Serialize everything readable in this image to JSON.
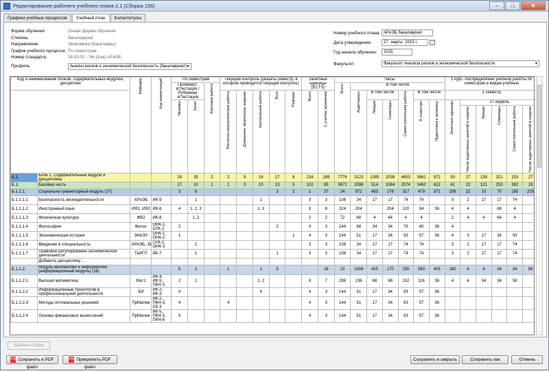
{
  "window": {
    "title": "Редактирование рабочего учебного плана 2.1 (Сборка 156)",
    "minimize": "–",
    "maximize": "□",
    "close": "✕"
  },
  "tabs": [
    {
      "label": "Графики учебных процессов"
    },
    {
      "label": "Учебный план"
    },
    {
      "label": "Колонтитулы"
    }
  ],
  "form": {
    "rows": [
      {
        "label": "Форма обучения:",
        "value": "Очная форма обучения"
      },
      {
        "label": "Степень:",
        "value": "бакалавриат"
      },
      {
        "label": "Направление:",
        "value": "Экономика (бакалавры)"
      },
      {
        "label": "График учебного процесса:",
        "value": "По семестрам"
      },
      {
        "label": "Номер стандарта:",
        "value": "38.03.01 - ЭН (Бак) АРиЭБ"
      }
    ],
    "profile_label": "Профиль:",
    "profile_value": "Анализ рисков и экономической безопасность (бакалавриат)"
  },
  "right_form": {
    "plan_number_label": "Номер учебного плана:",
    "plan_number_value": "АРиЭБ бакалавриат",
    "approval_date_label": "Дата утверждения:",
    "approval_day": "27",
    "approval_month": "марта",
    "approval_year": "2015 г.",
    "start_year_label": "Год начала обучения:",
    "start_year_value": "2015",
    "faculty_label": "Факультет:",
    "faculty_value": "Факультет Анализа рисков и экономической безопасности"
  },
  "grid_headers": {
    "code_name": "Код и наименование блоков, содержательных модулей, дисциплин",
    "department": "Кафедра",
    "competence_code": "Код компетенций",
    "by_semester": "По семестрам",
    "intermediate": "Промежут. аттестация / Рубежная аттестация",
    "exams": "Экзамен",
    "credits": "Зачет",
    "coursework": "Курсовая работа",
    "current_control": "Текущий контроль (указать семестр, в котором проводится текущий контроль)",
    "cc_cols": [
      "Расчетно-аналитическая работа",
      "Домашнее творческое задание",
      "Контрольная работа",
      "Эссе",
      "Реферат"
    ],
    "ects": "Зачетные единицы (ECTS)",
    "ects_cols": [
      "Всего",
      "С учетом экзаменов"
    ],
    "hours": "Часы",
    "hours_total": "Всего",
    "incl": "В том числе",
    "aud": "Аудиторных",
    "incl2": "В том числе",
    "lect": "Лекции",
    "sem": "Семинары",
    "selfwork": "Самостоятельная работа",
    "incl3": "В том числе",
    "in_sem": "В семестре",
    "prep_exam": "Подготовка к экзамену",
    "course1": "1 курс. Распределение учебной работы по семестрам и видам учебных",
    "sem1": "1 семестр",
    "weeks17": "17 недель",
    "c1_cols": [
      "Зачетные единицы",
      "Часов аудиторных занятий в неделю",
      "Лекции",
      "Семинары",
      "Самостоятельная работа",
      "Часов аудиторных занятий в неделю"
    ]
  },
  "rows": [
    {
      "type": "bl",
      "code": "Б.1.",
      "name": "Блок 1. Содержательные модули и дисциплины",
      "dep": "",
      "comp": "",
      "c": [
        "28",
        "35",
        "2",
        "2",
        "9",
        "16",
        "17",
        "8",
        "216",
        "189",
        "7776",
        "3123",
        "1085",
        "2038",
        "4653",
        "3681",
        "972",
        "59",
        "27",
        "138",
        "321",
        "153",
        "27"
      ]
    },
    {
      "type": "bp",
      "code": "Б.1.",
      "name": "Базовая часть",
      "dep": "",
      "comp": "",
      "c": [
        "17",
        "10",
        "1",
        "1",
        "3",
        "10",
        "13",
        "5",
        "102",
        "85",
        "3672",
        "1598",
        "514",
        "1084",
        "2074",
        "1462",
        "612",
        "41",
        "22",
        "121",
        "253",
        "382",
        "19"
      ]
    },
    {
      "type": "mod",
      "code": "Б.1.1.1.",
      "name": "Социально-гуманитарный модуль (27)",
      "dep": "",
      "comp": "",
      "c": [
        "3",
        "8",
        "",
        "",
        "",
        "",
        "3",
        "2",
        "1",
        "27",
        "24",
        "972",
        "493",
        "176",
        "317",
        "479",
        "371",
        "108",
        "22",
        "10",
        "70",
        "185",
        "205",
        "10"
      ]
    },
    {
      "type": "d",
      "code": "Б.1.1.1.1",
      "name": "Безопасность жизнедеятельности",
      "dep": "АРиЭБ",
      "comp": "ИК-9",
      "c": [
        "",
        "1",
        "",
        "",
        "",
        "1",
        "",
        "",
        "3",
        "3",
        "108",
        "34",
        "17",
        "17",
        "74",
        "74",
        "",
        "3",
        "2",
        "17",
        "17",
        "74",
        ""
      ]
    },
    {
      "type": "d",
      "code": "Б.1.1.1.2",
      "name": "Иностранный язык",
      "dep": "ИЯ1, ИЯ2",
      "comp": "ИК-6",
      "c": [
        "4",
        "1, 2, 3",
        "",
        "",
        "",
        "1, 3",
        "",
        "",
        "9",
        "8",
        "324",
        "204",
        "",
        "204",
        "120",
        "84",
        "36",
        "4",
        "4",
        "",
        "68",
        "4",
        ""
      ]
    },
    {
      "type": "d",
      "code": "Б.1.1.1.3",
      "name": "Физическая культура",
      "dep": "ФВ2",
      "comp": "ИК-8",
      "c": [
        "",
        "1, 2",
        "",
        "",
        "",
        "",
        "",
        "",
        "2",
        "2",
        "72",
        "68",
        "4",
        "64",
        "4",
        "4",
        "",
        "2",
        "4",
        "4",
        "64",
        "4",
        ""
      ]
    },
    {
      "type": "d",
      "code": "Б.1.1.1.4",
      "name": "Философия",
      "dep": "Филос",
      "comp": "ОНК-1, СЛК-2",
      "c": [
        "2",
        "",
        "",
        "",
        "",
        "",
        "2",
        "",
        "4",
        "3",
        "144",
        "68",
        "34",
        "34",
        "76",
        "40",
        "36",
        "4",
        "",
        "",
        "",
        "",
        ""
      ]
    },
    {
      "type": "d",
      "code": "Б.1.1.1.5",
      "name": "Экономическая история",
      "dep": "ЭИиЭУ",
      "comp": "ОНК-1, ОНК-2",
      "c": [
        "1",
        "",
        "",
        "",
        "",
        "",
        "",
        "1",
        "4",
        "3",
        "144",
        "51",
        "17",
        "34",
        "93",
        "57",
        "36",
        "4",
        "3",
        "17",
        "34",
        "93",
        ""
      ]
    },
    {
      "type": "d",
      "code": "Б.1.1.1.6",
      "name": "Введение в специальность",
      "dep": "АРиЭБ, ЭИиЭУ",
      "comp": "СЛК-1, ОНК-3",
      "c": [
        "",
        "1",
        "",
        "",
        "",
        "",
        "",
        "",
        "3",
        "3",
        "108",
        "34",
        "17",
        "17",
        "74",
        "74",
        "",
        "3",
        "2",
        "17",
        "17",
        "74",
        ""
      ]
    },
    {
      "type": "d",
      "code": "Б.1.1.1.7",
      "name": "Правовое регулирование экономической деятельности",
      "dep": "ТиИГП",
      "comp": "ИК-7",
      "c": [
        "",
        "1",
        "",
        "",
        "",
        "",
        "1",
        "",
        "3",
        "3",
        "108",
        "34",
        "17",
        "17",
        "74",
        "74",
        "",
        "3",
        "2",
        "17",
        "17",
        "74",
        ""
      ]
    },
    {
      "type": "add",
      "code": "",
      "name": "Добавить дисциплину ...",
      "dep": "",
      "comp": "",
      "c": []
    },
    {
      "type": "gray",
      "code": "Б.1.1.2.",
      "name": "Модуль математики и информатики (информационный модуль) (28)",
      "dep": "",
      "comp": "",
      "c": [
        "5",
        "2",
        "",
        "1",
        "",
        "1",
        "5",
        "",
        "",
        "28",
        "23",
        "1008",
        "425",
        "170",
        "255",
        "583",
        "403",
        "180",
        "8",
        "4",
        "34",
        "34",
        "58",
        "4"
      ]
    },
    {
      "type": "d",
      "code": "Б.1.1.2.1",
      "name": "Высшая математика",
      "dep": "Мат1",
      "comp": "ИК-4, ИК-5, ПКН-3",
      "c": [
        "2",
        "1",
        "",
        "",
        "",
        "1, 2",
        "",
        "",
        "8",
        "7",
        "288",
        "136",
        "68",
        "68",
        "152",
        "116",
        "36",
        "4",
        "4",
        "34",
        "34",
        "58",
        ""
      ]
    },
    {
      "type": "d",
      "code": "Б.1.1.2.2",
      "name": "Информационные технологии в профессиональной деятельности",
      "dep": "БИ",
      "comp": "ИК-2, ИК-3",
      "c": [
        "4",
        "",
        "",
        "",
        "",
        "4",
        "",
        "",
        "4",
        "3",
        "144",
        "51",
        "17",
        "34",
        "93",
        "57",
        "36",
        "",
        "",
        "",
        "",
        "",
        ""
      ]
    },
    {
      "type": "d",
      "code": "Б.1.1.2.3",
      "name": "Методы оптимальных решений",
      "dep": "ПрМатем",
      "comp": "ИК-2, ПКН-3, СК-3",
      "c": [
        "4",
        "",
        "",
        "4",
        "",
        "",
        "",
        "",
        "4",
        "3",
        "144",
        "51",
        "17",
        "34",
        "93",
        "57",
        "36",
        "",
        "",
        "",
        "",
        "",
        ""
      ]
    },
    {
      "type": "d",
      "code": "Б.1.1.2.4",
      "name": "Основы финансовых вычислений",
      "dep": "ПрМатем",
      "comp": "ИК-5, ПКН-3, ПКН-6",
      "c": [
        "5",
        "",
        "",
        "",
        "",
        "",
        "",
        "",
        "4",
        "3",
        "144",
        "51",
        "17",
        "34",
        "93",
        "57",
        "36",
        "",
        "",
        "",
        "",
        "",
        ""
      ]
    }
  ],
  "buttons": {
    "delete_row": "Удалить строку",
    "save_pdf": "Сохранить в PDF файл",
    "attach_pdf": "Прикрепить PDF файл",
    "save_close": "Сохранить и закрыть",
    "save_as": "Сохранить как",
    "cancel": "Отмена",
    "pdf_icon_text": "PDF"
  }
}
